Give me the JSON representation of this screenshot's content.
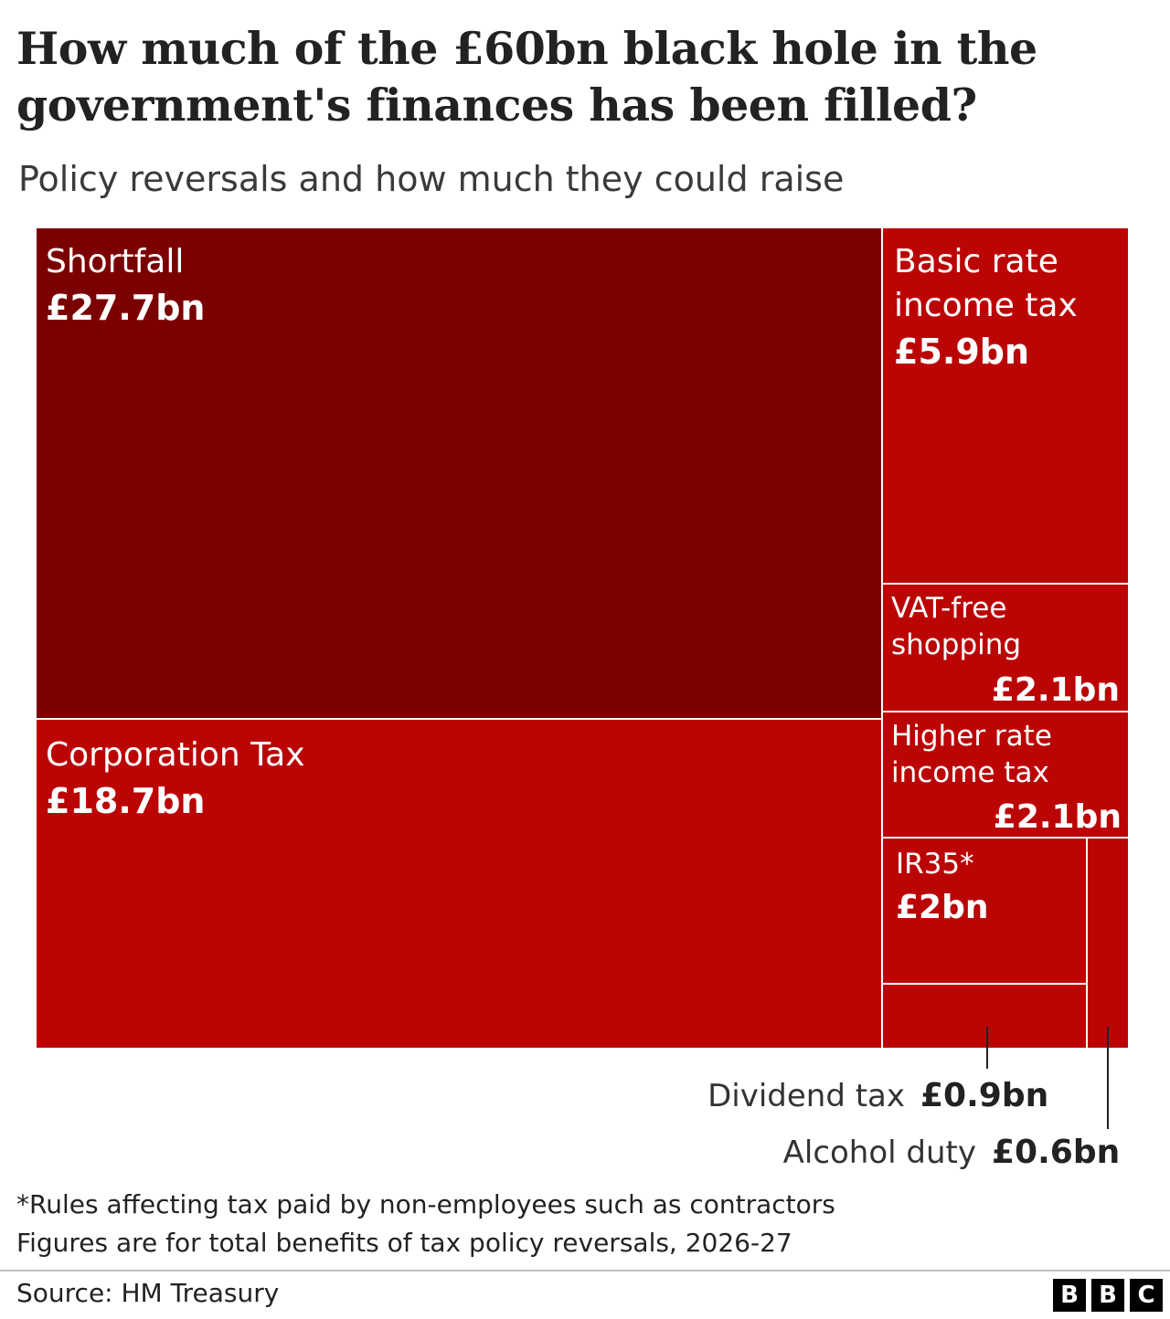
{
  "title": "How much of the £60bn black hole in the government's finances has been filled?",
  "subtitle": "Policy reversals and how much they could raise",
  "colors": {
    "shortfall": "#7b0000",
    "policy": "#bb0505",
    "text": "#222222"
  },
  "chart_data": {
    "type": "treemap",
    "unit": "£bn",
    "total": 60,
    "items": [
      {
        "label": "Shortfall",
        "value": 27.7,
        "value_label": "£27.7bn",
        "color": "#7b0000"
      },
      {
        "label": "Corporation Tax",
        "value": 18.7,
        "value_label": "£18.7bn",
        "color": "#bb0505"
      },
      {
        "label": "Basic rate income tax",
        "value": 5.9,
        "value_label": "£5.9bn",
        "color": "#bb0505"
      },
      {
        "label": "VAT-free shopping",
        "value": 2.1,
        "value_label": "£2.1bn",
        "color": "#bb0505"
      },
      {
        "label": "Higher rate income tax",
        "value": 2.1,
        "value_label": "£2.1bn",
        "color": "#bb0505"
      },
      {
        "label": "IR35*",
        "value": 2,
        "value_label": "£2bn",
        "color": "#bb0505"
      },
      {
        "label": "Dividend tax",
        "value": 0.9,
        "value_label": "£0.9bn",
        "color": "#bb0505"
      },
      {
        "label": "Alcohol duty",
        "value": 0.6,
        "value_label": "£0.6bn",
        "color": "#bb0505"
      }
    ],
    "display_lines": {
      "shortfall": [
        "Shortfall"
      ],
      "corporation": [
        "Corporation Tax"
      ],
      "basic": [
        "Basic rate",
        "income tax"
      ],
      "vat": [
        "VAT-free",
        "shopping"
      ],
      "higher": [
        "Higher rate",
        "income tax"
      ],
      "ir35": [
        "IR35*"
      ],
      "dividend": [
        "Dividend tax"
      ],
      "alcohol": [
        "Alcohol duty"
      ]
    }
  },
  "footnote": "*Rules affecting tax paid by non-employees such as contractors",
  "note": "Figures are for total benefits of tax policy reversals, 2026-27",
  "source": "Source: HM Treasury",
  "logo_letters": [
    "B",
    "B",
    "C"
  ]
}
